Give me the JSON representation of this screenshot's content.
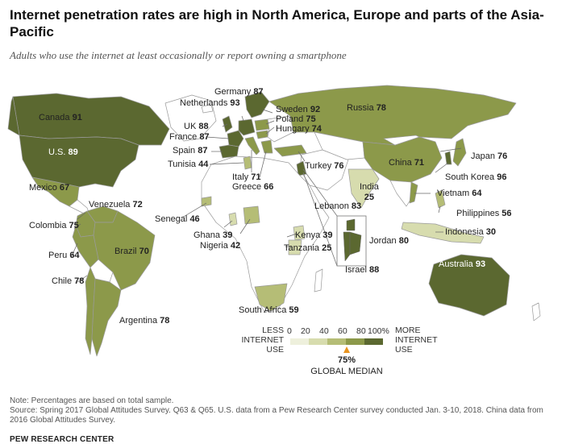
{
  "title": "Internet penetration rates are high in North America, Europe and parts of the Asia-Pacific",
  "subtitle": "Adults who use the internet at least occasionally or report owning a smartphone",
  "colors": {
    "c0_20": "#eef0dc",
    "c20_40": "#d7dcae",
    "c40_60": "#b5bd76",
    "c60_80": "#8c994a",
    "c80_100": "#5b6830",
    "no_data": "#ffffff",
    "outline": "#9a9a9a",
    "median_marker": "#e8941f"
  },
  "countries": [
    {
      "name": "Canada",
      "value": "91"
    },
    {
      "name": "U.S.",
      "value": "89"
    },
    {
      "name": "Mexico",
      "value": "67"
    },
    {
      "name": "Venezuela",
      "value": "72"
    },
    {
      "name": "Colombia",
      "value": "75"
    },
    {
      "name": "Peru",
      "value": "64"
    },
    {
      "name": "Brazil",
      "value": "70"
    },
    {
      "name": "Chile",
      "value": "78"
    },
    {
      "name": "Argentina",
      "value": "78"
    },
    {
      "name": "Germany",
      "value": "87"
    },
    {
      "name": "Netherlands",
      "value": "93"
    },
    {
      "name": "UK",
      "value": "88"
    },
    {
      "name": "France",
      "value": "87"
    },
    {
      "name": "Spain",
      "value": "87"
    },
    {
      "name": "Tunisia",
      "value": "44"
    },
    {
      "name": "Italy",
      "value": "71"
    },
    {
      "name": "Greece",
      "value": "66"
    },
    {
      "name": "Sweden",
      "value": "92"
    },
    {
      "name": "Poland",
      "value": "75"
    },
    {
      "name": "Hungary",
      "value": "74"
    },
    {
      "name": "Russia",
      "value": "78"
    },
    {
      "name": "Turkey",
      "value": "76"
    },
    {
      "name": "Senegal",
      "value": "46"
    },
    {
      "name": "Ghana",
      "value": "39"
    },
    {
      "name": "Nigeria",
      "value": "42"
    },
    {
      "name": "Kenya",
      "value": "39"
    },
    {
      "name": "Tanzania",
      "value": "25"
    },
    {
      "name": "South Africa",
      "value": "59"
    },
    {
      "name": "Lebanon",
      "value": "83"
    },
    {
      "name": "Jordan",
      "value": "80"
    },
    {
      "name": "Israel",
      "value": "88"
    },
    {
      "name": "India",
      "value": "25"
    },
    {
      "name": "China",
      "value": "71"
    },
    {
      "name": "Japan",
      "value": "76"
    },
    {
      "name": "South Korea",
      "value": "96"
    },
    {
      "name": "Vietnam",
      "value": "64"
    },
    {
      "name": "Philippines",
      "value": "56"
    },
    {
      "name": "Indonesia",
      "value": "30"
    },
    {
      "name": "Australia",
      "value": "93"
    }
  ],
  "legend": {
    "low_label": "LESS\nINTERNET\nUSE",
    "high_label": "MORE\nINTERNET\nUSE",
    "ticks": [
      "0",
      "20",
      "40",
      "60",
      "80",
      "100%"
    ],
    "median_value": "75%",
    "median_label": "GLOBAL MEDIAN"
  },
  "note": "Note: Percentages are based on total sample.",
  "source": "Source: Spring 2017 Global Attitudes Survey. Q63 & Q65. U.S. data from a Pew Research Center survey conducted Jan. 3-10, 2018. China data from 2016 Global Attitudes Survey.",
  "brand": "PEW RESEARCH CENTER"
}
